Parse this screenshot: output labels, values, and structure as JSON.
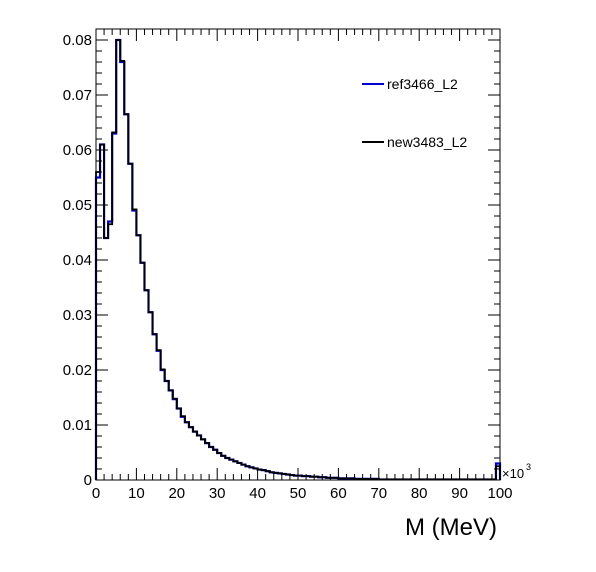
{
  "chart_data": {
    "type": "line",
    "style": "step-histogram",
    "title": "",
    "xlabel": "M (MeV)",
    "ylabel": "",
    "x_multiplier_label": "×10",
    "x_multiplier_exp": "3",
    "xlim": [
      0,
      100
    ],
    "ylim": [
      0,
      0.082
    ],
    "bin_width": 1,
    "x_ticks": [
      0,
      10,
      20,
      30,
      40,
      50,
      60,
      70,
      80,
      90,
      100
    ],
    "y_ticks": [
      0,
      0.01,
      0.02,
      0.03,
      0.04,
      0.05,
      0.06,
      0.07,
      0.08
    ],
    "y_tick_labels": [
      "0",
      "0.01",
      "0.02",
      "0.03",
      "0.04",
      "0.05",
      "0.06",
      "0.07",
      "0.08"
    ],
    "x_tick_labels": [
      "0",
      "10",
      "20",
      "30",
      "40",
      "50",
      "60",
      "70",
      "80",
      "90",
      "100"
    ],
    "grid": false,
    "legend_position": "top-right",
    "series": [
      {
        "name": "ref3466_L2",
        "color": "#0000cc",
        "values": [
          0.055,
          0.061,
          0.044,
          0.047,
          0.063,
          0.08,
          0.076,
          0.0665,
          0.0575,
          0.049,
          0.0445,
          0.0395,
          0.0345,
          0.0305,
          0.0265,
          0.0235,
          0.02,
          0.018,
          0.0163,
          0.0147,
          0.013,
          0.0115,
          0.0105,
          0.0096,
          0.0088,
          0.0081,
          0.0074,
          0.0067,
          0.006,
          0.0055,
          0.0049,
          0.0044,
          0.004,
          0.0037,
          0.0034,
          0.0031,
          0.0028,
          0.0025,
          0.0023,
          0.0021,
          0.0019,
          0.0018,
          0.0016,
          0.0014,
          0.0013,
          0.0012,
          0.0011,
          0.001,
          0.0009,
          0.0008,
          0.0008,
          0.0007,
          0.0007,
          0.0006,
          0.0006,
          0.0005,
          0.0005,
          0.0004,
          0.0004,
          0.0004,
          0.0003,
          0.0003,
          0.0003,
          0.0003,
          0.0002,
          0.0002,
          0.0002,
          0.0002,
          0.0002,
          0.0002,
          0.0001,
          0.0001,
          0.0001,
          0.0001,
          0.0001,
          0.0001,
          0.0001,
          0.0001,
          0.0001,
          0.0001,
          0.0001,
          0.0001,
          0.0001,
          0.0001,
          0.0001,
          0.0001,
          0.0001,
          0.0001,
          0.0001,
          0.0001,
          0.0001,
          0.0001,
          0.0001,
          0.0001,
          0.0001,
          0.0001,
          0.0001,
          0.0001,
          0.0001,
          0.003
        ]
      },
      {
        "name": "new3483_L2",
        "color": "#000000",
        "values": [
          0.056,
          0.061,
          0.044,
          0.0465,
          0.0632,
          0.08,
          0.0762,
          0.0665,
          0.0575,
          0.0492,
          0.0445,
          0.0395,
          0.0345,
          0.0305,
          0.0265,
          0.0236,
          0.0201,
          0.018,
          0.0163,
          0.0148,
          0.013,
          0.0116,
          0.0105,
          0.0096,
          0.0088,
          0.0081,
          0.0074,
          0.0067,
          0.006,
          0.0055,
          0.0049,
          0.0044,
          0.004,
          0.0037,
          0.0034,
          0.0031,
          0.0028,
          0.0025,
          0.0023,
          0.0021,
          0.0019,
          0.0018,
          0.0016,
          0.0014,
          0.0013,
          0.0012,
          0.0011,
          0.001,
          0.0009,
          0.0008,
          0.0008,
          0.0007,
          0.0007,
          0.0006,
          0.0006,
          0.0005,
          0.0005,
          0.0004,
          0.0004,
          0.0004,
          0.0003,
          0.0003,
          0.0003,
          0.0003,
          0.0002,
          0.0002,
          0.0002,
          0.0002,
          0.0002,
          0.0002,
          0.0001,
          0.0001,
          0.0001,
          0.0001,
          0.0001,
          0.0001,
          0.0001,
          0.0001,
          0.0001,
          0.0001,
          0.0001,
          0.0001,
          0.0001,
          0.0001,
          0.0001,
          0.0001,
          0.0001,
          0.0001,
          0.0001,
          0.0001,
          0.0001,
          0.0001,
          0.0001,
          0.0001,
          0.0001,
          0.0001,
          0.0001,
          0.0001,
          0.0001,
          0.0025
        ]
      }
    ]
  }
}
